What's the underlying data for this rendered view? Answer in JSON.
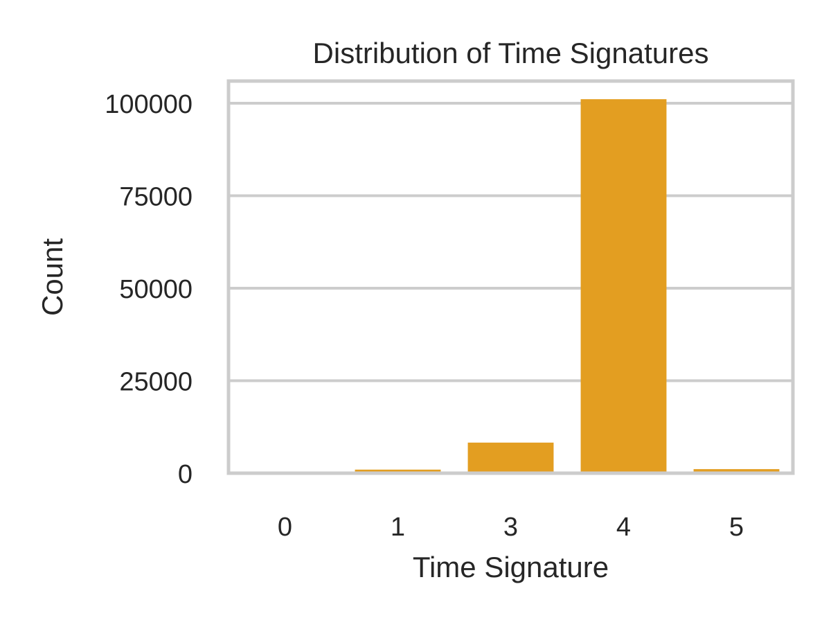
{
  "chart_data": {
    "type": "bar",
    "title": "Distribution of Time Signatures",
    "xlabel": "Time Signature",
    "ylabel": "Count",
    "categories": [
      "0",
      "1",
      "3",
      "4",
      "5"
    ],
    "values": [
      163,
      967,
      8270,
      101100,
      1100
    ],
    "ylim": [
      0,
      106000
    ],
    "yticks": [
      0,
      25000,
      50000,
      75000,
      100000
    ],
    "ytick_labels": [
      "0",
      "25000",
      "50000",
      "75000",
      "100000"
    ],
    "grid": true,
    "legend": "none",
    "colors": {
      "bar": "#e39e21",
      "grid": "#cccccc",
      "frame": "#cccccc",
      "text": "#262626",
      "background": "#ffffff"
    }
  }
}
